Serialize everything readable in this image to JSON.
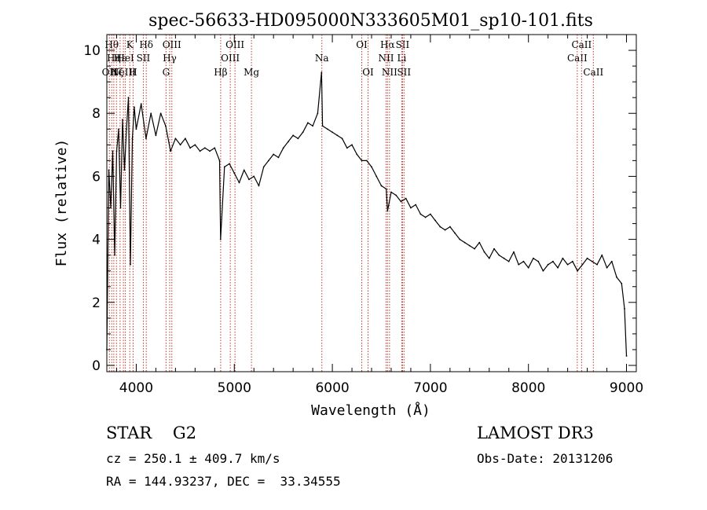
{
  "chart_data": {
    "type": "line",
    "title": "spec-56633-HD095000N333605M01_sp10-101.fits",
    "xlabel": "Wavelength (Å)",
    "ylabel": "Flux (relative)",
    "xlim": [
      3700,
      9100
    ],
    "ylim": [
      -0.2,
      10.5
    ],
    "xticks": [
      4000,
      5000,
      6000,
      7000,
      8000,
      9000
    ],
    "yticks": [
      0,
      2,
      4,
      6,
      8,
      10
    ],
    "grid": false,
    "series": [
      {
        "x": [
          3700,
          3720,
          3740,
          3760,
          3780,
          3800,
          3820,
          3840,
          3860,
          3880,
          3900,
          3920,
          3940,
          3960,
          3980,
          4000,
          4050,
          4100,
          4150,
          4200,
          4250,
          4300,
          4350,
          4400,
          4450,
          4500,
          4550,
          4600,
          4650,
          4700,
          4750,
          4800,
          4850,
          4860,
          4900,
          4950,
          5000,
          5050,
          5100,
          5150,
          5200,
          5250,
          5300,
          5350,
          5400,
          5450,
          5500,
          5550,
          5600,
          5650,
          5700,
          5750,
          5800,
          5850,
          5890,
          5900,
          5950,
          6000,
          6050,
          6100,
          6150,
          6200,
          6250,
          6300,
          6350,
          6400,
          6450,
          6500,
          6550,
          6563,
          6600,
          6650,
          6700,
          6750,
          6800,
          6850,
          6900,
          6950,
          7000,
          7050,
          7100,
          7150,
          7200,
          7250,
          7300,
          7350,
          7400,
          7450,
          7500,
          7550,
          7600,
          7650,
          7700,
          7750,
          7800,
          7850,
          7900,
          7950,
          8000,
          8050,
          8100,
          8150,
          8200,
          8250,
          8300,
          8350,
          8400,
          8450,
          8500,
          8550,
          8600,
          8650,
          8700,
          8750,
          8800,
          8850,
          8900,
          8950,
          8980,
          9000
        ],
        "y": [
          0.5,
          6.2,
          5.0,
          6.8,
          3.5,
          6.8,
          7.5,
          5.0,
          7.8,
          6.2,
          7.5,
          8.5,
          3.2,
          7.2,
          8.2,
          7.5,
          8.3,
          7.2,
          8.0,
          7.3,
          8.0,
          7.6,
          6.8,
          7.2,
          7.0,
          7.2,
          6.9,
          7.0,
          6.8,
          6.9,
          6.8,
          6.9,
          6.5,
          4.0,
          6.3,
          6.4,
          6.1,
          5.8,
          6.2,
          5.9,
          6.0,
          5.7,
          6.3,
          6.5,
          6.7,
          6.6,
          6.9,
          7.1,
          7.3,
          7.2,
          7.4,
          7.7,
          7.6,
          8.0,
          9.3,
          7.6,
          7.5,
          7.4,
          7.3,
          7.2,
          6.9,
          7.0,
          6.7,
          6.5,
          6.5,
          6.3,
          6.0,
          5.7,
          5.6,
          4.9,
          5.5,
          5.4,
          5.2,
          5.3,
          5.0,
          5.1,
          4.8,
          4.7,
          4.8,
          4.6,
          4.4,
          4.3,
          4.4,
          4.2,
          4.0,
          3.9,
          3.8,
          3.7,
          3.9,
          3.6,
          3.4,
          3.7,
          3.5,
          3.4,
          3.3,
          3.6,
          3.2,
          3.3,
          3.1,
          3.4,
          3.3,
          3.0,
          3.2,
          3.3,
          3.1,
          3.4,
          3.2,
          3.3,
          3.0,
          3.2,
          3.4,
          3.3,
          3.2,
          3.5,
          3.1,
          3.3,
          2.8,
          2.6,
          1.8,
          0.3
        ]
      }
    ],
    "lines": [
      {
        "wl": 3726,
        "labels": [
          {
            "text": "OII",
            "row": 3
          }
        ]
      },
      {
        "wl": 3750,
        "labels": [
          {
            "text": "Hθ",
            "row": 1
          }
        ]
      },
      {
        "wl": 3771,
        "labels": [
          {
            "text": "Hη",
            "row": 2
          }
        ]
      },
      {
        "wl": 3798,
        "labels": [
          {
            "text": "Hζ",
            "row": 3
          }
        ]
      },
      {
        "wl": 3835,
        "labels": [
          {
            "text": "Hε",
            "row": 2
          }
        ]
      },
      {
        "wl": 3869,
        "labels": [
          {
            "text": "NeIII",
            "row": 3
          }
        ]
      },
      {
        "wl": 3889,
        "labels": [
          {
            "text": "HeI",
            "row": 2
          }
        ]
      },
      {
        "wl": 3934,
        "labels": [
          {
            "text": "K",
            "row": 1
          }
        ]
      },
      {
        "wl": 3968,
        "labels": [
          {
            "text": "H",
            "row": 3
          }
        ]
      },
      {
        "wl": 4072,
        "labels": [
          {
            "text": "SII",
            "row": 2
          }
        ]
      },
      {
        "wl": 4102,
        "labels": [
          {
            "text": "Hδ",
            "row": 1
          }
        ]
      },
      {
        "wl": 4304,
        "labels": [
          {
            "text": "G",
            "row": 3
          }
        ]
      },
      {
        "wl": 4341,
        "labels": [
          {
            "text": "Hγ",
            "row": 2
          }
        ]
      },
      {
        "wl": 4363,
        "labels": [
          {
            "text": "OIII",
            "row": 1
          }
        ]
      },
      {
        "wl": 4861,
        "labels": [
          {
            "text": "Hβ",
            "row": 3
          }
        ]
      },
      {
        "wl": 4959,
        "labels": [
          {
            "text": "OIII",
            "row": 2
          }
        ]
      },
      {
        "wl": 5007,
        "labels": [
          {
            "text": "OIII",
            "row": 1
          }
        ]
      },
      {
        "wl": 5175,
        "labels": [
          {
            "text": "Mg",
            "row": 3
          }
        ]
      },
      {
        "wl": 5893,
        "labels": [
          {
            "text": "Na",
            "row": 2
          }
        ]
      },
      {
        "wl": 6300,
        "labels": [
          {
            "text": "OI",
            "row": 1
          }
        ]
      },
      {
        "wl": 6364,
        "labels": [
          {
            "text": "OI",
            "row": 3
          }
        ]
      },
      {
        "wl": 6548,
        "labels": [
          {
            "text": "NII",
            "row": 2
          }
        ]
      },
      {
        "wl": 6563,
        "labels": [
          {
            "text": "Hα",
            "row": 1
          }
        ]
      },
      {
        "wl": 6583,
        "labels": [
          {
            "text": "NII",
            "row": 3
          }
        ]
      },
      {
        "wl": 6708,
        "labels": [
          {
            "text": "Li",
            "row": 2
          }
        ]
      },
      {
        "wl": 6716,
        "labels": [
          {
            "text": "SII",
            "row": 1
          }
        ]
      },
      {
        "wl": 6731,
        "labels": [
          {
            "text": "SII",
            "row": 3
          }
        ]
      },
      {
        "wl": 8498,
        "labels": [
          {
            "text": "CaII",
            "row": 2
          }
        ]
      },
      {
        "wl": 8542,
        "labels": [
          {
            "text": "CaII",
            "row": 1
          }
        ]
      },
      {
        "wl": 8662,
        "labels": [
          {
            "text": "CaII",
            "row": 3
          }
        ]
      }
    ]
  },
  "info": {
    "class_line": "STAR    G2",
    "cz_line": "cz = 250.1 ± 409.7 km/s",
    "radec_line": "RA = 144.93237, DEC =  33.34555",
    "survey": "LAMOST DR3",
    "obs_date": "Obs-Date: 20131206"
  }
}
